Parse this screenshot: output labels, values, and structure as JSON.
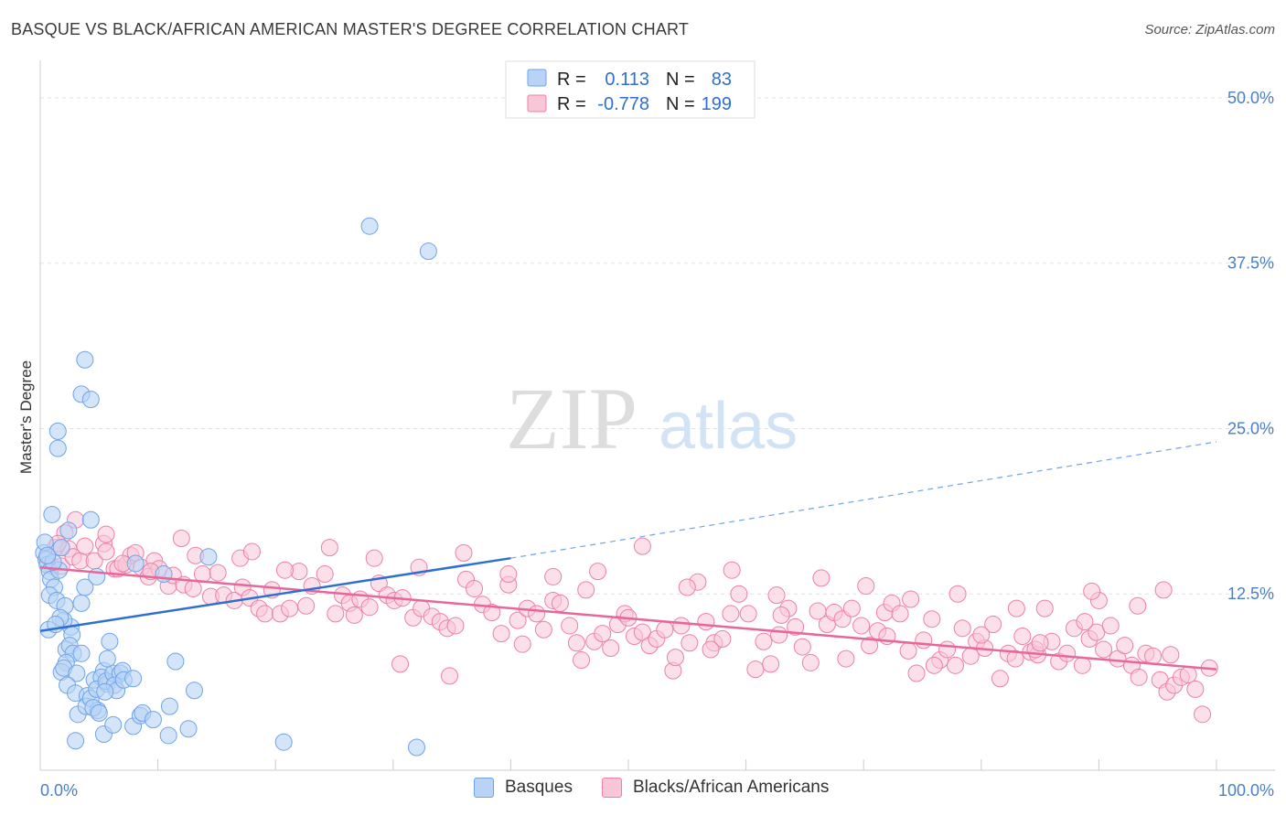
{
  "title": "BASQUE VS BLACK/AFRICAN AMERICAN MASTER'S DEGREE CORRELATION CHART",
  "source": "Source: ZipAtlas.com",
  "watermark": {
    "zip": "ZIP",
    "atlas": "atlas"
  },
  "legend": {
    "r_label": "R =",
    "n_label": "N =",
    "rows": [
      {
        "r": "0.113",
        "n": "83",
        "color": "#6fa3e8",
        "fill": "#b8d3f5"
      },
      {
        "r": "-0.778",
        "n": "199",
        "color": "#ee7fa5",
        "fill": "#f9c6d7"
      }
    ]
  },
  "bottom_legend": [
    {
      "label": "Basques",
      "fill": "#b8d3f5",
      "stroke": "#6fa3e8"
    },
    {
      "label": "Blacks/African Americans",
      "fill": "#f9c6d7",
      "stroke": "#ee7fa5"
    }
  ],
  "chart_data": {
    "type": "scatter",
    "xlabel": "",
    "ylabel": "Master's Degree",
    "xlim": [
      0,
      100
    ],
    "ylim": [
      0,
      52
    ],
    "x_tick_labels": [
      "0.0%",
      "100.0%"
    ],
    "y_ticks": [
      12.5,
      25.0,
      37.5,
      50.0
    ],
    "y_tick_labels": [
      "12.5%",
      "25.0%",
      "37.5%",
      "50.0%"
    ],
    "grid": true,
    "colors": {
      "blue_line": "#2f6fd0",
      "pink_line": "#e8679a"
    },
    "series": [
      {
        "name": "Basques",
        "trend": {
          "x0": 0,
          "y0": 9.7,
          "x1": 40,
          "y1": 15.2,
          "dash_to": 100,
          "dash_y": 24.0
        },
        "points": [
          [
            0.3,
            15.6
          ],
          [
            0.5,
            15.1
          ],
          [
            0.4,
            16.4
          ],
          [
            0.6,
            14.7
          ],
          [
            0.8,
            14.2
          ],
          [
            1.0,
            18.5
          ],
          [
            0.9,
            13.6
          ],
          [
            1.2,
            13.0
          ],
          [
            0.8,
            12.4
          ],
          [
            1.4,
            12.0
          ],
          [
            1.6,
            14.3
          ],
          [
            1.8,
            16.0
          ],
          [
            1.5,
            24.8
          ],
          [
            1.5,
            23.5
          ],
          [
            2.4,
            17.3
          ],
          [
            2.6,
            10.0
          ],
          [
            2.7,
            9.4
          ],
          [
            2.1,
            11.6
          ],
          [
            2.0,
            10.5
          ],
          [
            1.7,
            10.7
          ],
          [
            2.2,
            8.3
          ],
          [
            2.5,
            8.6
          ],
          [
            2.8,
            8.0
          ],
          [
            3.5,
            8.0
          ],
          [
            2.2,
            7.3
          ],
          [
            1.8,
            6.6
          ],
          [
            2.0,
            6.9
          ],
          [
            3.1,
            6.5
          ],
          [
            2.3,
            5.6
          ],
          [
            3.0,
            5.0
          ],
          [
            3.2,
            3.4
          ],
          [
            3.0,
            1.4
          ],
          [
            3.5,
            27.6
          ],
          [
            4.3,
            27.2
          ],
          [
            3.8,
            30.2
          ],
          [
            4.3,
            18.1
          ],
          [
            3.8,
            13.0
          ],
          [
            3.5,
            11.8
          ],
          [
            4.0,
            4.8
          ],
          [
            3.9,
            4.0
          ],
          [
            4.3,
            4.6
          ],
          [
            4.6,
            6.0
          ],
          [
            5.4,
            6.7
          ],
          [
            5.2,
            6.2
          ],
          [
            4.8,
            5.3
          ],
          [
            5.7,
            5.7
          ],
          [
            5.6,
            5.9
          ],
          [
            6.2,
            6.5
          ],
          [
            6.8,
            6.5
          ],
          [
            6.3,
            5.6
          ],
          [
            6.5,
            5.2
          ],
          [
            5.5,
            5.1
          ],
          [
            4.9,
            3.7
          ],
          [
            4.5,
            3.9
          ],
          [
            5.0,
            3.5
          ],
          [
            5.4,
            1.9
          ],
          [
            6.2,
            2.6
          ],
          [
            7.0,
            6.7
          ],
          [
            7.1,
            6.0
          ],
          [
            5.7,
            7.6
          ],
          [
            5.9,
            8.9
          ],
          [
            4.8,
            13.8
          ],
          [
            7.9,
            6.1
          ],
          [
            7.9,
            2.5
          ],
          [
            8.5,
            3.3
          ],
          [
            8.7,
            3.5
          ],
          [
            9.6,
            3.0
          ],
          [
            10.9,
            1.8
          ],
          [
            11.0,
            4.0
          ],
          [
            11.5,
            7.4
          ],
          [
            12.6,
            2.3
          ],
          [
            13.1,
            5.2
          ],
          [
            14.3,
            15.3
          ],
          [
            10.5,
            14.0
          ],
          [
            8.1,
            14.8
          ],
          [
            20.7,
            1.3
          ],
          [
            28.0,
            40.3
          ],
          [
            33.0,
            38.4
          ],
          [
            32.0,
            0.9
          ],
          [
            0.7,
            9.8
          ],
          [
            1.1,
            14.9
          ],
          [
            0.6,
            15.4
          ],
          [
            1.3,
            10.2
          ]
        ]
      },
      {
        "name": "Blacks/African Americans",
        "trend": {
          "x0": 0,
          "y0": 14.5,
          "x1": 100,
          "y1": 6.8
        },
        "points": [
          [
            0.6,
            15.3
          ],
          [
            1.0,
            14.6
          ],
          [
            1.3,
            16.0
          ],
          [
            1.8,
            14.6
          ],
          [
            2.4,
            15.9
          ],
          [
            2.8,
            15.3
          ],
          [
            3.4,
            15.0
          ],
          [
            3.8,
            16.1
          ],
          [
            4.6,
            15.0
          ],
          [
            5.4,
            16.3
          ],
          [
            5.6,
            15.7
          ],
          [
            6.3,
            14.4
          ],
          [
            6.6,
            14.4
          ],
          [
            7.3,
            14.7
          ],
          [
            7.7,
            15.4
          ],
          [
            8.1,
            15.6
          ],
          [
            8.6,
            14.5
          ],
          [
            9.2,
            13.8
          ],
          [
            9.7,
            15.0
          ],
          [
            10.1,
            14.4
          ],
          [
            10.9,
            13.1
          ],
          [
            11.3,
            13.9
          ],
          [
            12.2,
            13.2
          ],
          [
            13.0,
            12.9
          ],
          [
            13.8,
            14.0
          ],
          [
            14.5,
            12.3
          ],
          [
            15.1,
            14.1
          ],
          [
            15.6,
            12.4
          ],
          [
            16.5,
            12.0
          ],
          [
            17.2,
            13.0
          ],
          [
            17.8,
            12.2
          ],
          [
            18.6,
            11.4
          ],
          [
            19.1,
            11.0
          ],
          [
            19.7,
            12.8
          ],
          [
            20.4,
            11.0
          ],
          [
            21.2,
            11.4
          ],
          [
            22.0,
            14.2
          ],
          [
            22.6,
            11.6
          ],
          [
            23.1,
            13.1
          ],
          [
            24.2,
            14.0
          ],
          [
            25.1,
            11.0
          ],
          [
            25.7,
            12.4
          ],
          [
            26.3,
            11.8
          ],
          [
            27.2,
            12.1
          ],
          [
            28.0,
            11.5
          ],
          [
            28.8,
            13.3
          ],
          [
            29.5,
            12.4
          ],
          [
            30.1,
            12.0
          ],
          [
            30.8,
            12.2
          ],
          [
            31.7,
            10.7
          ],
          [
            32.4,
            11.4
          ],
          [
            33.3,
            10.8
          ],
          [
            34.0,
            10.4
          ],
          [
            34.6,
            9.9
          ],
          [
            35.3,
            10.1
          ],
          [
            36.2,
            13.6
          ],
          [
            36.9,
            12.9
          ],
          [
            37.6,
            11.7
          ],
          [
            38.4,
            11.1
          ],
          [
            39.2,
            9.5
          ],
          [
            39.8,
            13.2
          ],
          [
            40.6,
            10.5
          ],
          [
            41.4,
            11.4
          ],
          [
            42.2,
            11.0
          ],
          [
            42.8,
            9.8
          ],
          [
            43.6,
            12.0
          ],
          [
            44.2,
            11.8
          ],
          [
            45.0,
            10.1
          ],
          [
            45.6,
            8.8
          ],
          [
            46.4,
            12.8
          ],
          [
            47.1,
            8.9
          ],
          [
            47.8,
            9.5
          ],
          [
            48.5,
            8.4
          ],
          [
            49.1,
            10.2
          ],
          [
            49.7,
            11.0
          ],
          [
            50.5,
            9.3
          ],
          [
            51.2,
            9.6
          ],
          [
            51.8,
            8.6
          ],
          [
            52.4,
            9.1
          ],
          [
            53.1,
            9.8
          ],
          [
            53.8,
            6.7
          ],
          [
            54.5,
            10.1
          ],
          [
            55.2,
            8.8
          ],
          [
            55.9,
            13.4
          ],
          [
            56.6,
            10.4
          ],
          [
            57.3,
            8.8
          ],
          [
            58.0,
            9.1
          ],
          [
            58.7,
            11.0
          ],
          [
            59.4,
            12.5
          ],
          [
            60.2,
            11.0
          ],
          [
            60.8,
            6.8
          ],
          [
            61.5,
            8.9
          ],
          [
            62.1,
            7.2
          ],
          [
            62.8,
            9.4
          ],
          [
            63.6,
            11.4
          ],
          [
            64.2,
            10.0
          ],
          [
            64.8,
            8.5
          ],
          [
            65.5,
            7.3
          ],
          [
            66.1,
            11.2
          ],
          [
            66.9,
            10.2
          ],
          [
            67.5,
            11.1
          ],
          [
            68.2,
            10.6
          ],
          [
            69.0,
            11.4
          ],
          [
            69.8,
            10.1
          ],
          [
            70.5,
            8.6
          ],
          [
            71.2,
            9.7
          ],
          [
            71.8,
            11.1
          ],
          [
            72.4,
            11.8
          ],
          [
            73.1,
            11.0
          ],
          [
            73.8,
            8.2
          ],
          [
            74.5,
            6.5
          ],
          [
            75.1,
            9.0
          ],
          [
            75.8,
            10.6
          ],
          [
            76.5,
            7.5
          ],
          [
            77.1,
            8.3
          ],
          [
            77.8,
            7.1
          ],
          [
            78.4,
            9.9
          ],
          [
            79.1,
            7.8
          ],
          [
            79.6,
            8.9
          ],
          [
            80.3,
            8.4
          ],
          [
            81.0,
            10.2
          ],
          [
            81.6,
            6.1
          ],
          [
            82.3,
            8.0
          ],
          [
            82.9,
            7.6
          ],
          [
            83.5,
            9.3
          ],
          [
            84.2,
            8.1
          ],
          [
            84.8,
            7.9
          ],
          [
            85.4,
            11.4
          ],
          [
            86.0,
            8.9
          ],
          [
            86.6,
            7.4
          ],
          [
            87.3,
            8.0
          ],
          [
            87.9,
            9.9
          ],
          [
            88.6,
            7.1
          ],
          [
            89.2,
            9.1
          ],
          [
            89.8,
            9.6
          ],
          [
            90.4,
            8.3
          ],
          [
            91.0,
            10.1
          ],
          [
            91.6,
            7.6
          ],
          [
            92.2,
            8.6
          ],
          [
            92.8,
            7.1
          ],
          [
            93.4,
            6.2
          ],
          [
            94.0,
            8.0
          ],
          [
            94.6,
            7.8
          ],
          [
            95.2,
            6.0
          ],
          [
            95.8,
            5.1
          ],
          [
            96.4,
            5.6
          ],
          [
            97.0,
            6.2
          ],
          [
            97.6,
            6.4
          ],
          [
            98.2,
            5.3
          ],
          [
            98.8,
            3.4
          ],
          [
            99.4,
            6.9
          ],
          [
            90.0,
            12.0
          ],
          [
            89.4,
            12.7
          ],
          [
            96.1,
            7.9
          ],
          [
            93.3,
            11.6
          ],
          [
            88.8,
            10.4
          ],
          [
            95.5,
            12.8
          ],
          [
            84.6,
            8.3
          ],
          [
            83.0,
            11.4
          ],
          [
            78.0,
            12.5
          ],
          [
            74.0,
            12.1
          ],
          [
            70.2,
            13.1
          ],
          [
            66.4,
            13.7
          ],
          [
            62.6,
            12.4
          ],
          [
            58.8,
            14.3
          ],
          [
            55.0,
            13.0
          ],
          [
            51.2,
            16.1
          ],
          [
            47.4,
            14.2
          ],
          [
            43.6,
            13.8
          ],
          [
            39.8,
            14.0
          ],
          [
            36.0,
            15.6
          ],
          [
            32.2,
            14.5
          ],
          [
            28.4,
            15.2
          ],
          [
            24.6,
            16.0
          ],
          [
            20.8,
            14.3
          ],
          [
            17.0,
            15.2
          ],
          [
            13.2,
            15.4
          ],
          [
            9.4,
            14.2
          ],
          [
            5.6,
            17.0
          ],
          [
            2.1,
            17.1
          ],
          [
            3.0,
            18.1
          ],
          [
            1.5,
            16.3
          ],
          [
            7.0,
            14.8
          ],
          [
            12.0,
            16.7
          ],
          [
            18.0,
            15.7
          ],
          [
            26.7,
            10.9
          ],
          [
            30.6,
            7.2
          ],
          [
            34.8,
            6.3
          ],
          [
            41.0,
            8.7
          ],
          [
            46.0,
            7.5
          ],
          [
            50.0,
            10.7
          ],
          [
            54.0,
            7.7
          ],
          [
            57.0,
            8.3
          ],
          [
            63.0,
            10.9
          ],
          [
            68.5,
            7.6
          ],
          [
            72.0,
            9.3
          ],
          [
            76.0,
            7.1
          ],
          [
            80.0,
            9.4
          ],
          [
            85.0,
            8.8
          ]
        ]
      }
    ]
  }
}
